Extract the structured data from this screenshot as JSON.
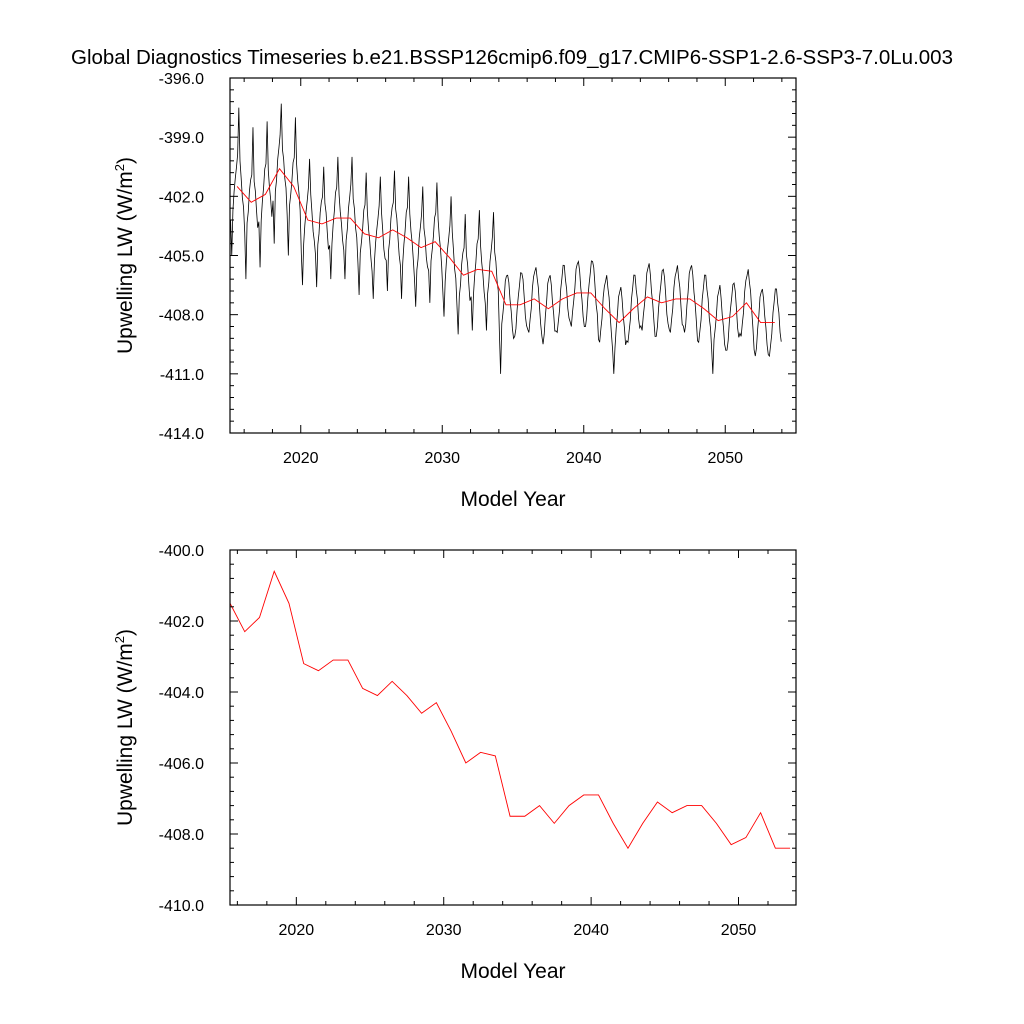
{
  "chart_data": [
    {
      "type": "line",
      "title": "Global Diagnostics Timeseries b.e21.BSSP126cmip6.f09_g17.CMIP6-SSP1-2.6-SSP3-7.0Lu.003",
      "xlabel": "Model Year",
      "ylabel": "Upwelling LW (W/m",
      "ylabel_sup": "2",
      "ylabel_close": ")",
      "xlim": [
        2015,
        2055
      ],
      "ylim": [
        -414.0,
        -396.0
      ],
      "xticks": [
        2020,
        2030,
        2040,
        2050
      ],
      "xtick_labels": [
        "2020",
        "2030",
        "2040",
        "2050"
      ],
      "yticks": [
        -414.0,
        -411.0,
        -408.0,
        -405.0,
        -402.0,
        -399.0,
        -396.0
      ],
      "ytick_labels": [
        "-414.0",
        "-411.0",
        "-408.0",
        "-405.0",
        "-402.0",
        "-399.0",
        "-396.0"
      ],
      "series": [
        {
          "kind": "monthly",
          "color": "#000000",
          "x_start": 2015.04,
          "x_step": 0.0833333,
          "annual_mean": [
            -401.5,
            -402.3,
            -401.9,
            -400.6,
            -401.5,
            -403.2,
            -403.4,
            -403.1,
            -403.1,
            -403.9,
            -404.1,
            -403.7,
            -404.1,
            -404.6,
            -404.3,
            -405.1,
            -406.0,
            -405.7,
            -405.8,
            -407.5,
            -407.5,
            -407.2,
            -407.7,
            -407.2,
            -406.9,
            -406.9,
            -407.7,
            -408.4,
            -407.7,
            -407.1,
            -407.4,
            -407.2,
            -407.2,
            -407.7,
            -408.3,
            -408.1,
            -407.4,
            -408.4,
            -408.4
          ],
          "seasonal_amplitude": 1.6,
          "yearly_extremes": [
            [
              -397.5,
              -405.0
            ],
            [
              -398.5,
              -406.2
            ],
            [
              -398.2,
              -405.6
            ],
            [
              -397.3,
              -404.4
            ],
            [
              -398.0,
              -405.0
            ],
            [
              -400.1,
              -406.5
            ],
            [
              -400.5,
              -406.6
            ],
            [
              -400.0,
              -406.2
            ],
            [
              -400.0,
              -406.2
            ],
            [
              -400.8,
              -407.0
            ],
            [
              -401.0,
              -407.2
            ],
            [
              -400.7,
              -406.8
            ],
            [
              -401.0,
              -407.2
            ],
            [
              -401.5,
              -407.6
            ],
            [
              -401.3,
              -407.4
            ],
            [
              -402.0,
              -408.1
            ],
            [
              -402.9,
              -409.0
            ],
            [
              -402.7,
              -408.8
            ],
            [
              -402.8,
              -408.8
            ],
            [
              -406.0,
              -411.0
            ],
            [
              -405.9,
              -409.1
            ],
            [
              -405.6,
              -408.9
            ],
            [
              -406.0,
              -409.5
            ],
            [
              -405.5,
              -408.9
            ],
            [
              -405.3,
              -408.6
            ],
            [
              -405.3,
              -408.6
            ],
            [
              -406.0,
              -409.4
            ],
            [
              -406.6,
              -411.0
            ],
            [
              -406.0,
              -409.4
            ],
            [
              -405.4,
              -408.8
            ],
            [
              -405.7,
              -409.1
            ],
            [
              -405.5,
              -408.9
            ],
            [
              -405.5,
              -408.9
            ],
            [
              -406.0,
              -409.4
            ],
            [
              -406.5,
              -411.0
            ],
            [
              -406.4,
              -409.8
            ],
            [
              -405.7,
              -409.1
            ],
            [
              -406.7,
              -410.1
            ],
            [
              -406.7,
              -410.1
            ]
          ]
        },
        {
          "kind": "annual",
          "color": "#ff0000",
          "x": [
            2015.5,
            2016.5,
            2017.5,
            2018.5,
            2019.5,
            2020.5,
            2021.5,
            2022.5,
            2023.5,
            2024.5,
            2025.5,
            2026.5,
            2027.5,
            2028.5,
            2029.5,
            2030.5,
            2031.5,
            2032.5,
            2033.5,
            2034.5,
            2035.5,
            2036.5,
            2037.5,
            2038.5,
            2039.5,
            2040.5,
            2041.5,
            2042.5,
            2043.5,
            2044.5,
            2045.5,
            2046.5,
            2047.5,
            2048.5,
            2049.5,
            2050.5,
            2051.5,
            2052.5,
            2053.5
          ],
          "y": [
            -401.5,
            -402.3,
            -401.9,
            -400.6,
            -401.5,
            -403.2,
            -403.4,
            -403.1,
            -403.1,
            -403.9,
            -404.1,
            -403.7,
            -404.1,
            -404.6,
            -404.3,
            -405.1,
            -406.0,
            -405.7,
            -405.8,
            -407.5,
            -407.5,
            -407.2,
            -407.7,
            -407.2,
            -406.9,
            -406.9,
            -407.7,
            -408.4,
            -407.7,
            -407.1,
            -407.4,
            -407.2,
            -407.2,
            -407.7,
            -408.3,
            -408.1,
            -407.4,
            -408.4,
            -408.4
          ]
        }
      ]
    },
    {
      "type": "line",
      "xlabel": "Model Year",
      "ylabel": "Upwelling LW (W/m",
      "ylabel_sup": "2",
      "ylabel_close": ")",
      "xlim": [
        2015.5,
        2053.9
      ],
      "ylim": [
        -410.0,
        -400.0
      ],
      "xticks": [
        2020,
        2030,
        2040,
        2050
      ],
      "xtick_labels": [
        "2020",
        "2030",
        "2040",
        "2050"
      ],
      "yticks": [
        -410.0,
        -408.0,
        -406.0,
        -404.0,
        -402.0,
        -400.0
      ],
      "ytick_labels": [
        "-410.0",
        "-408.0",
        "-406.0",
        "-404.0",
        "-402.0",
        "-400.0"
      ],
      "series": [
        {
          "kind": "annual",
          "color": "#ff0000",
          "x": [
            2015.5,
            2016.5,
            2017.5,
            2018.5,
            2019.5,
            2020.5,
            2021.5,
            2022.5,
            2023.5,
            2024.5,
            2025.5,
            2026.5,
            2027.5,
            2028.5,
            2029.5,
            2030.5,
            2031.5,
            2032.5,
            2033.5,
            2034.5,
            2035.5,
            2036.5,
            2037.5,
            2038.5,
            2039.5,
            2040.5,
            2041.5,
            2042.5,
            2043.5,
            2044.5,
            2045.5,
            2046.5,
            2047.5,
            2048.5,
            2049.5,
            2050.5,
            2051.5,
            2052.5,
            2053.5
          ],
          "y": [
            -401.5,
            -402.3,
            -401.9,
            -400.6,
            -401.5,
            -403.2,
            -403.4,
            -403.1,
            -403.1,
            -403.9,
            -404.1,
            -403.7,
            -404.1,
            -404.6,
            -404.3,
            -405.1,
            -406.0,
            -405.7,
            -405.8,
            -407.5,
            -407.5,
            -407.2,
            -407.7,
            -407.2,
            -406.9,
            -406.9,
            -407.7,
            -408.4,
            -407.7,
            -407.1,
            -407.4,
            -407.2,
            -407.2,
            -407.7,
            -408.3,
            -408.1,
            -407.4,
            -408.4,
            -408.4
          ]
        }
      ]
    }
  ]
}
